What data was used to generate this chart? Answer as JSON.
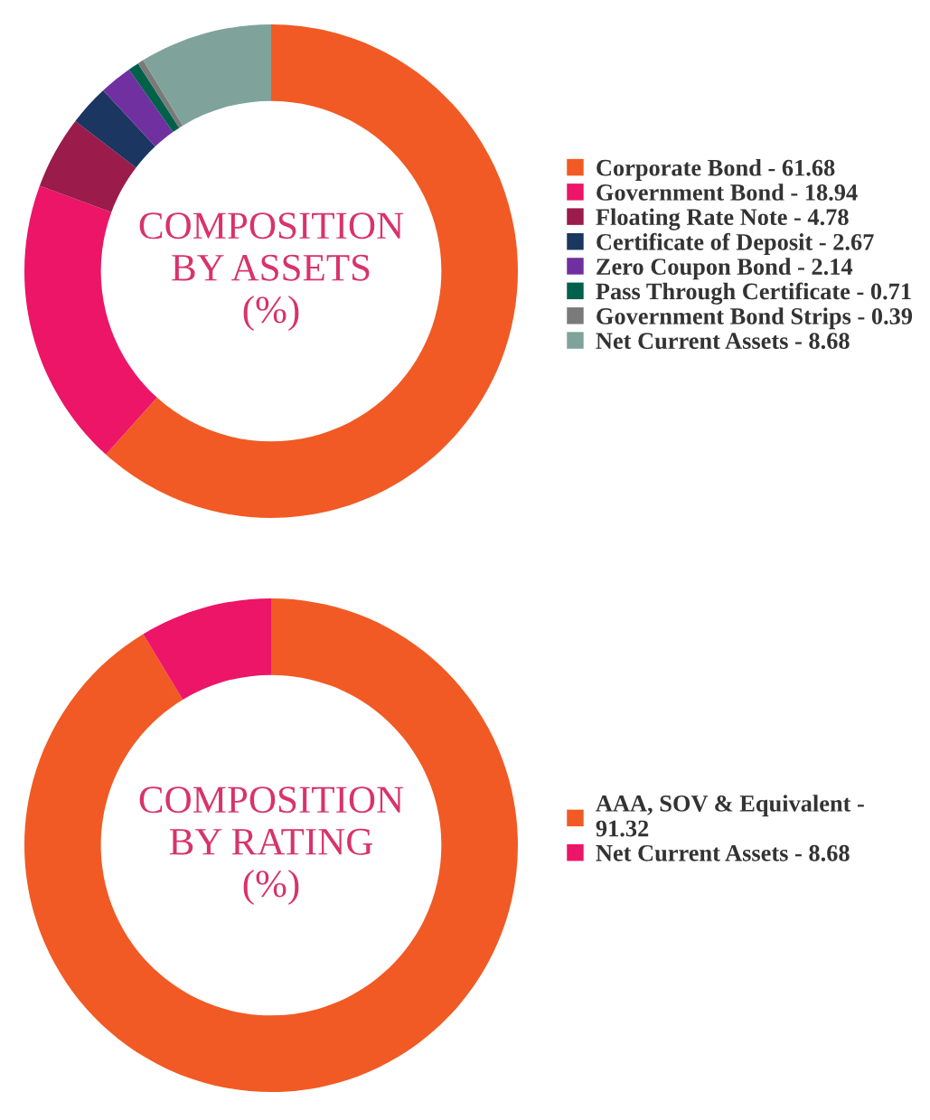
{
  "chart_data": [
    {
      "type": "donut",
      "title": "COMPOSITION\nBY ASSETS\n(%)",
      "categories": [
        "Corporate Bond - 61.68",
        "Government Bond - 18.94",
        "Floating Rate Note - 4.78",
        "Certificate of Deposit - 2.67",
        "Zero Coupon Bond - 2.14",
        "Pass Through Certificate - 0.71",
        "Government Bond Strips - 0.39",
        "Net Current Assets - 8.68"
      ],
      "values": [
        61.68,
        18.94,
        4.78,
        2.67,
        2.14,
        0.71,
        0.39,
        8.68
      ],
      "colors": [
        "#f15a24",
        "#ec1567",
        "#9b1b4b",
        "#1b3660",
        "#7030a0",
        "#00614a",
        "#7a7a7a",
        "#7fa39a"
      ],
      "legend": "right"
    },
    {
      "type": "donut",
      "title": "COMPOSITION\nBY RATING\n(%)",
      "categories": [
        "AAA, SOV & Equivalent -\n91.32",
        "Net Current Assets - 8.68"
      ],
      "values": [
        91.32,
        8.68
      ],
      "colors": [
        "#f15a24",
        "#ec1567"
      ],
      "legend": "right"
    }
  ]
}
